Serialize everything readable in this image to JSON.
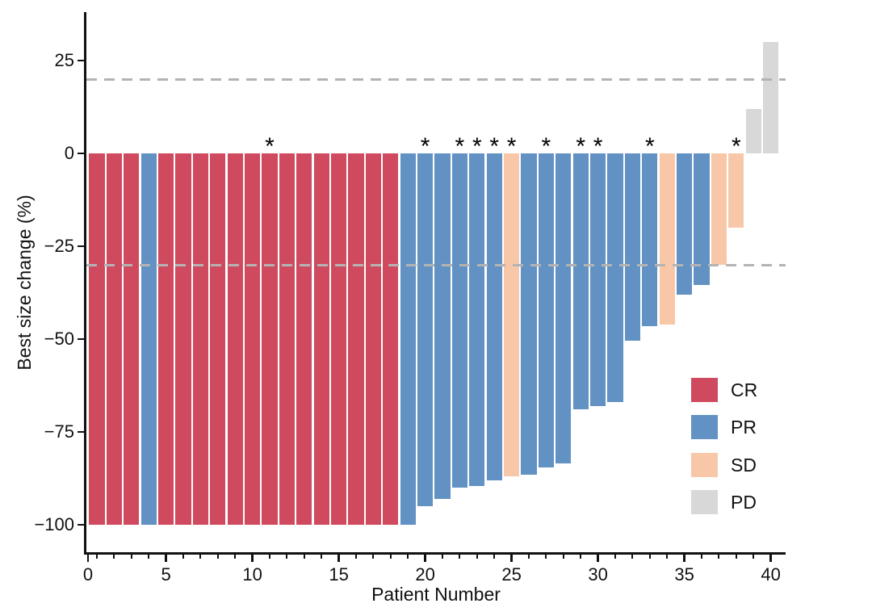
{
  "chart_data": {
    "type": "bar",
    "subtype": "waterfall",
    "title": "",
    "xlabel": "Patient Number",
    "ylabel": "Best size change (%)",
    "xlim": [
      0,
      41
    ],
    "ylim": [
      -107,
      38
    ],
    "grid": false,
    "xticks": [
      0,
      5,
      10,
      15,
      20,
      25,
      30,
      35,
      40
    ],
    "x_minor_tick_step": 1,
    "yticks": [
      {
        "value": 25,
        "label": "25"
      },
      {
        "value": 0,
        "label": "0"
      },
      {
        "value": -25,
        "label": "−25"
      },
      {
        "value": -50,
        "label": "−50"
      },
      {
        "value": -75,
        "label": "−75"
      },
      {
        "value": -100,
        "label": "−100"
      }
    ],
    "reference_lines": [
      {
        "value": 20,
        "style": "dashed",
        "color": "#b3b3b3"
      },
      {
        "value": -30,
        "style": "dashed",
        "color": "#b3b3b3"
      }
    ],
    "colors": {
      "CR": "#d04a5f",
      "PR": "#6292c3",
      "SD": "#f8c7a8",
      "PD": "#d8d8d8"
    },
    "legend": [
      {
        "key": "CR",
        "label": "CR"
      },
      {
        "key": "PR",
        "label": "PR"
      },
      {
        "key": "SD",
        "label": "SD"
      },
      {
        "key": "PD",
        "label": "PD"
      }
    ],
    "legend_position": "inside-right",
    "annotation_symbol": "*",
    "starred_patients": [
      11,
      20,
      22,
      23,
      24,
      25,
      27,
      29,
      30,
      33,
      38
    ],
    "patients": [
      {
        "patient": 1,
        "value": -100,
        "response": "CR",
        "starred": false
      },
      {
        "patient": 2,
        "value": -100,
        "response": "CR",
        "starred": false
      },
      {
        "patient": 3,
        "value": -100,
        "response": "CR",
        "starred": false
      },
      {
        "patient": 4,
        "value": -100,
        "response": "PR",
        "starred": false
      },
      {
        "patient": 5,
        "value": -100,
        "response": "CR",
        "starred": false
      },
      {
        "patient": 6,
        "value": -100,
        "response": "CR",
        "starred": false
      },
      {
        "patient": 7,
        "value": -100,
        "response": "CR",
        "starred": false
      },
      {
        "patient": 8,
        "value": -100,
        "response": "CR",
        "starred": false
      },
      {
        "patient": 9,
        "value": -100,
        "response": "CR",
        "starred": false
      },
      {
        "patient": 10,
        "value": -100,
        "response": "CR",
        "starred": false
      },
      {
        "patient": 11,
        "value": -100,
        "response": "CR",
        "starred": true
      },
      {
        "patient": 12,
        "value": -100,
        "response": "CR",
        "starred": false
      },
      {
        "patient": 13,
        "value": -100,
        "response": "CR",
        "starred": false
      },
      {
        "patient": 14,
        "value": -100,
        "response": "CR",
        "starred": false
      },
      {
        "patient": 15,
        "value": -100,
        "response": "CR",
        "starred": false
      },
      {
        "patient": 16,
        "value": -100,
        "response": "CR",
        "starred": false
      },
      {
        "patient": 17,
        "value": -100,
        "response": "CR",
        "starred": false
      },
      {
        "patient": 18,
        "value": -100,
        "response": "CR",
        "starred": false
      },
      {
        "patient": 19,
        "value": -100,
        "response": "PR",
        "starred": false
      },
      {
        "patient": 20,
        "value": -95,
        "response": "PR",
        "starred": true
      },
      {
        "patient": 21,
        "value": -93,
        "response": "PR",
        "starred": false
      },
      {
        "patient": 22,
        "value": -90,
        "response": "PR",
        "starred": true
      },
      {
        "patient": 23,
        "value": -89.5,
        "response": "PR",
        "starred": true
      },
      {
        "patient": 24,
        "value": -88,
        "response": "PR",
        "starred": true
      },
      {
        "patient": 25,
        "value": -87,
        "response": "SD",
        "starred": true
      },
      {
        "patient": 26,
        "value": -86.5,
        "response": "PR",
        "starred": false
      },
      {
        "patient": 27,
        "value": -84.5,
        "response": "PR",
        "starred": true
      },
      {
        "patient": 28,
        "value": -83.5,
        "response": "PR",
        "starred": false
      },
      {
        "patient": 29,
        "value": -69,
        "response": "PR",
        "starred": true
      },
      {
        "patient": 30,
        "value": -68,
        "response": "PR",
        "starred": true
      },
      {
        "patient": 31,
        "value": -67,
        "response": "PR",
        "starred": false
      },
      {
        "patient": 32,
        "value": -50.5,
        "response": "PR",
        "starred": false
      },
      {
        "patient": 33,
        "value": -46.5,
        "response": "PR",
        "starred": true
      },
      {
        "patient": 34,
        "value": -46,
        "response": "SD",
        "starred": false
      },
      {
        "patient": 35,
        "value": -38,
        "response": "PR",
        "starred": false
      },
      {
        "patient": 36,
        "value": -35.5,
        "response": "PR",
        "starred": false
      },
      {
        "patient": 37,
        "value": -30,
        "response": "SD",
        "starred": false
      },
      {
        "patient": 38,
        "value": -20,
        "response": "SD",
        "starred": true
      },
      {
        "patient": 39,
        "value": 12,
        "response": "PD",
        "starred": false
      },
      {
        "patient": 40,
        "value": 30,
        "response": "PD",
        "starred": false
      }
    ]
  }
}
